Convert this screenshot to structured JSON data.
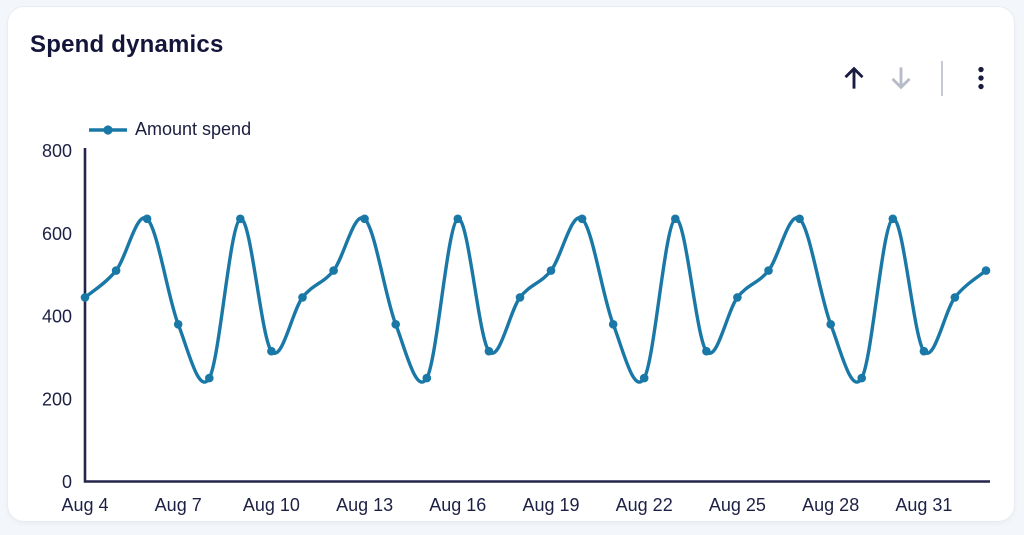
{
  "card": {
    "title": "Spend dynamics"
  },
  "toolbar": {
    "icons": [
      "up-arrow-icon",
      "down-arrow-icon",
      "kebab-menu-icon"
    ]
  },
  "colors": {
    "series_teal": "#1a78a6",
    "axis_navy": "#23264a",
    "text_navy": "#1b1e40",
    "title_navy": "#13153a",
    "muted_icon_gray": "#b7bcc9",
    "divider_gray": "#c6cad6",
    "card_background": "#ffffff",
    "page_background": "#f3f6fa"
  },
  "chart_data": {
    "type": "line",
    "title": "Spend dynamics",
    "legend_position": "top-left",
    "grid": false,
    "xlabel": "",
    "ylabel": "",
    "ylim": [
      0,
      800
    ],
    "y_ticks": [
      0,
      200,
      400,
      600,
      800
    ],
    "x_tick_labels": [
      "Aug 4",
      "Aug 7",
      "Aug 10",
      "Aug 13",
      "Aug 16",
      "Aug 19",
      "Aug 22",
      "Aug 25",
      "Aug 28",
      "Aug 31"
    ],
    "categories": [
      "Aug 4",
      "Aug 5",
      "Aug 6",
      "Aug 7",
      "Aug 8",
      "Aug 9",
      "Aug 10",
      "Aug 11",
      "Aug 12",
      "Aug 13",
      "Aug 14",
      "Aug 15",
      "Aug 16",
      "Aug 17",
      "Aug 18",
      "Aug 19",
      "Aug 20",
      "Aug 21",
      "Aug 22",
      "Aug 23",
      "Aug 24",
      "Aug 25",
      "Aug 26",
      "Aug 27",
      "Aug 28",
      "Aug 29",
      "Aug 30",
      "Aug 31",
      "Sep 1",
      "Sep 2"
    ],
    "series": [
      {
        "name": "Amount spend",
        "color": "#1a78a6",
        "values": [
          445,
          510,
          635,
          380,
          250,
          635,
          315,
          445,
          510,
          635,
          380,
          250,
          635,
          315,
          445,
          510,
          635,
          380,
          250,
          635,
          315,
          445,
          510,
          635,
          380,
          250,
          635,
          315,
          445,
          510
        ]
      }
    ],
    "axis_color": "#23264a"
  }
}
